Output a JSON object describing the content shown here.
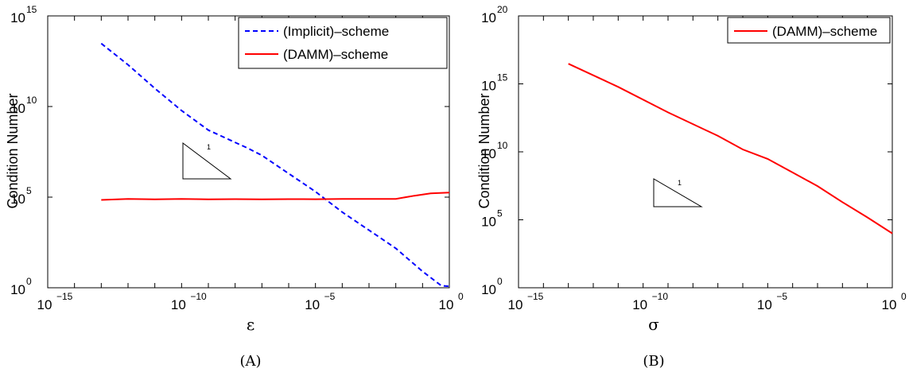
{
  "chart_data": [
    {
      "type": "line",
      "xscale": "log",
      "yscale": "log",
      "xlabel": "ε",
      "ylabel": "Condition Number",
      "xlim": [
        1e-15,
        1
      ],
      "ylim": [
        1,
        1000000000000000.0
      ],
      "xticks": [
        {
          "base": "10",
          "exp": "−15"
        },
        {
          "base": "10",
          "exp": "−10"
        },
        {
          "base": "10",
          "exp": "−5"
        },
        {
          "base": "10",
          "exp": "0"
        }
      ],
      "yticks": [
        {
          "base": "10",
          "exp": "0"
        },
        {
          "base": "10",
          "exp": "5"
        },
        {
          "base": "10",
          "exp": "10"
        },
        {
          "base": "10",
          "exp": "15"
        }
      ],
      "grid": false,
      "legend_position": "top-right",
      "slope_label": "1",
      "caption": "(A)",
      "series": [
        {
          "name": "(Implicit)–scheme",
          "color": "#0000ff",
          "style": "dashed",
          "points": [
            [
              1e-13,
              30000000000000.0
            ],
            [
              1e-12,
              2000000000000.0
            ],
            [
              1e-11,
              100000000000.0
            ],
            [
              1e-10,
              6000000000.0
            ],
            [
              1e-09,
              500000000.0
            ],
            [
              3e-08,
              50000000.0
            ],
            [
              1e-07,
              20000000.0
            ],
            [
              1e-06,
              2000000.0
            ],
            [
              1e-05,
              200000.0
            ],
            [
              0.0001,
              15000.0
            ],
            [
              0.001,
              1500.0
            ],
            [
              0.01,
              150.0
            ],
            [
              0.1,
              8
            ],
            [
              0.5,
              1.3
            ],
            [
              1,
              1.2
            ]
          ]
        },
        {
          "name": "(DAMM)–scheme",
          "color": "#ff0000",
          "style": "solid",
          "points": [
            [
              1e-13,
              70000.0
            ],
            [
              1e-12,
              80000.0
            ],
            [
              1e-11,
              75000.0
            ],
            [
              1e-10,
              80000.0
            ],
            [
              1e-09,
              75000.0
            ],
            [
              1e-08,
              78000.0
            ],
            [
              1e-07,
              76000.0
            ],
            [
              1e-06,
              78000.0
            ],
            [
              1e-05,
              77000.0
            ],
            [
              0.0001,
              79000.0
            ],
            [
              0.001,
              80000.0
            ],
            [
              0.01,
              80000.0
            ],
            [
              0.05,
              120000.0
            ],
            [
              0.2,
              160000.0
            ],
            [
              1,
              180000.0
            ]
          ]
        }
      ]
    },
    {
      "type": "line",
      "xscale": "log",
      "yscale": "log",
      "xlabel": "σ",
      "ylabel": "Condition Number",
      "xlim": [
        1e-15,
        1
      ],
      "ylim": [
        1,
        1e+20
      ],
      "xticks": [
        {
          "base": "10",
          "exp": "−15"
        },
        {
          "base": "10",
          "exp": "−10"
        },
        {
          "base": "10",
          "exp": "−5"
        },
        {
          "base": "10",
          "exp": "0"
        }
      ],
      "yticks": [
        {
          "base": "10",
          "exp": "0"
        },
        {
          "base": "10",
          "exp": "5"
        },
        {
          "base": "10",
          "exp": "10"
        },
        {
          "base": "10",
          "exp": "15"
        },
        {
          "base": "10",
          "exp": "20"
        }
      ],
      "grid": false,
      "legend_position": "top-right",
      "slope_label": "1",
      "caption": "(B)",
      "series": [
        {
          "name": "(DAMM)–scheme",
          "color": "#ff0000",
          "style": "solid",
          "points": [
            [
              1e-13,
              3e+16
            ],
            [
              1e-11,
              600000000000000.0
            ],
            [
              1e-09,
              8000000000000.0
            ],
            [
              1e-07,
              150000000000.0
            ],
            [
              1e-06,
              15000000000.0
            ],
            [
              1e-05,
              3000000000.0
            ],
            [
              0.0001,
              300000000.0
            ],
            [
              0.001,
              30000000.0
            ],
            [
              0.01,
              2000000.0
            ],
            [
              0.1,
              150000.0
            ],
            [
              1,
              10000.0
            ]
          ]
        }
      ]
    }
  ]
}
